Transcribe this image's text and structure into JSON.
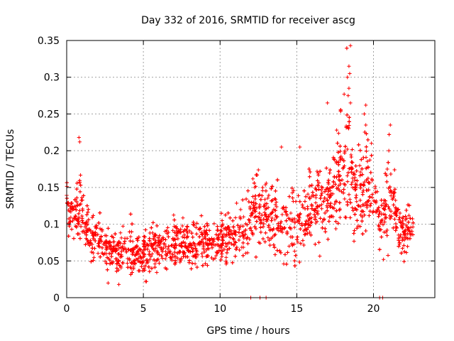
{
  "chart_data": {
    "type": "scatter",
    "title": "Day 332 of 2016, SRMTID for receiver ascg",
    "xlabel": "GPS time / hours",
    "ylabel": "SRMTID / TECUs",
    "xlim": [
      0,
      24
    ],
    "ylim": [
      0,
      0.35
    ],
    "grid": true,
    "marker": "+",
    "x_ticks": [
      0,
      5,
      10,
      15,
      20
    ],
    "x_tick_labels": [
      "0",
      "5",
      "10",
      "15",
      "20"
    ],
    "y_ticks": [
      0,
      0.05,
      0.1,
      0.15,
      0.2,
      0.25,
      0.3,
      0.35
    ],
    "y_tick_labels": [
      "0",
      "0.05",
      "0.1",
      "0.15",
      "0.2",
      "0.25",
      "0.3",
      "0.35"
    ],
    "series": [
      {
        "name": "SRMTID",
        "color": "#ff0000",
        "envelope": {
          "hours": [
            0.0,
            0.3,
            0.6,
            0.9,
            1.2,
            1.6,
            2.0,
            2.5,
            3.0,
            3.5,
            4.0,
            4.5,
            5.0,
            5.5,
            6.0,
            6.5,
            7.0,
            7.5,
            8.0,
            8.5,
            9.0,
            9.5,
            10.0,
            10.5,
            11.0,
            11.5,
            12.0,
            12.5,
            13.0,
            13.5,
            14.0,
            14.5,
            15.0,
            15.5,
            16.0,
            16.5,
            17.0,
            17.5,
            18.0,
            18.3,
            18.6,
            19.0,
            19.4,
            19.8,
            20.2,
            20.6,
            21.0,
            21.4,
            21.8,
            22.2,
            22.6
          ],
          "mean": [
            0.125,
            0.12,
            0.11,
            0.14,
            0.095,
            0.085,
            0.08,
            0.065,
            0.06,
            0.062,
            0.065,
            0.063,
            0.06,
            0.065,
            0.07,
            0.072,
            0.07,
            0.068,
            0.07,
            0.072,
            0.075,
            0.078,
            0.08,
            0.085,
            0.08,
            0.085,
            0.11,
            0.12,
            0.105,
            0.11,
            0.11,
            0.105,
            0.1,
            0.11,
            0.12,
            0.13,
            0.135,
            0.15,
            0.185,
            0.2,
            0.15,
            0.14,
            0.16,
            0.155,
            0.14,
            0.09,
            0.15,
            0.13,
            0.09,
            0.095,
            0.1
          ],
          "spread": [
            0.025,
            0.03,
            0.03,
            0.04,
            0.02,
            0.02,
            0.02,
            0.02,
            0.02,
            0.02,
            0.022,
            0.02,
            0.02,
            0.02,
            0.02,
            0.02,
            0.02,
            0.02,
            0.02,
            0.02,
            0.02,
            0.022,
            0.022,
            0.022,
            0.022,
            0.025,
            0.035,
            0.035,
            0.035,
            0.035,
            0.035,
            0.035,
            0.03,
            0.03,
            0.035,
            0.035,
            0.04,
            0.045,
            0.06,
            0.07,
            0.05,
            0.045,
            0.05,
            0.045,
            0.04,
            0.03,
            0.045,
            0.035,
            0.025,
            0.022,
            0.022
          ]
        },
        "samples_per_hour": 150,
        "extremes": [
          {
            "x": 18.5,
            "y": 0.343
          },
          {
            "x": 18.4,
            "y": 0.315
          },
          {
            "x": 18.45,
            "y": 0.305
          },
          {
            "x": 18.3,
            "y": 0.3
          },
          {
            "x": 18.4,
            "y": 0.285
          },
          {
            "x": 18.35,
            "y": 0.275
          },
          {
            "x": 18.5,
            "y": 0.265
          },
          {
            "x": 17.0,
            "y": 0.265
          },
          {
            "x": 19.5,
            "y": 0.262
          },
          {
            "x": 19.4,
            "y": 0.25
          },
          {
            "x": 19.5,
            "y": 0.235
          },
          {
            "x": 21.1,
            "y": 0.235
          },
          {
            "x": 18.3,
            "y": 0.232
          },
          {
            "x": 17.6,
            "y": 0.228
          },
          {
            "x": 0.8,
            "y": 0.218
          },
          {
            "x": 0.85,
            "y": 0.212
          },
          {
            "x": 14.0,
            "y": 0.205
          },
          {
            "x": 15.2,
            "y": 0.205
          },
          {
            "x": 21.0,
            "y": 0.2
          },
          {
            "x": 12.0,
            "y": 0.0
          },
          {
            "x": 12.6,
            "y": 0.0
          },
          {
            "x": 13.0,
            "y": 0.0
          },
          {
            "x": 20.4,
            "y": 0.0
          },
          {
            "x": 20.6,
            "y": 0.0
          },
          {
            "x": 3.4,
            "y": 0.018
          },
          {
            "x": 2.7,
            "y": 0.02
          },
          {
            "x": 5.2,
            "y": 0.022
          }
        ]
      }
    ]
  }
}
